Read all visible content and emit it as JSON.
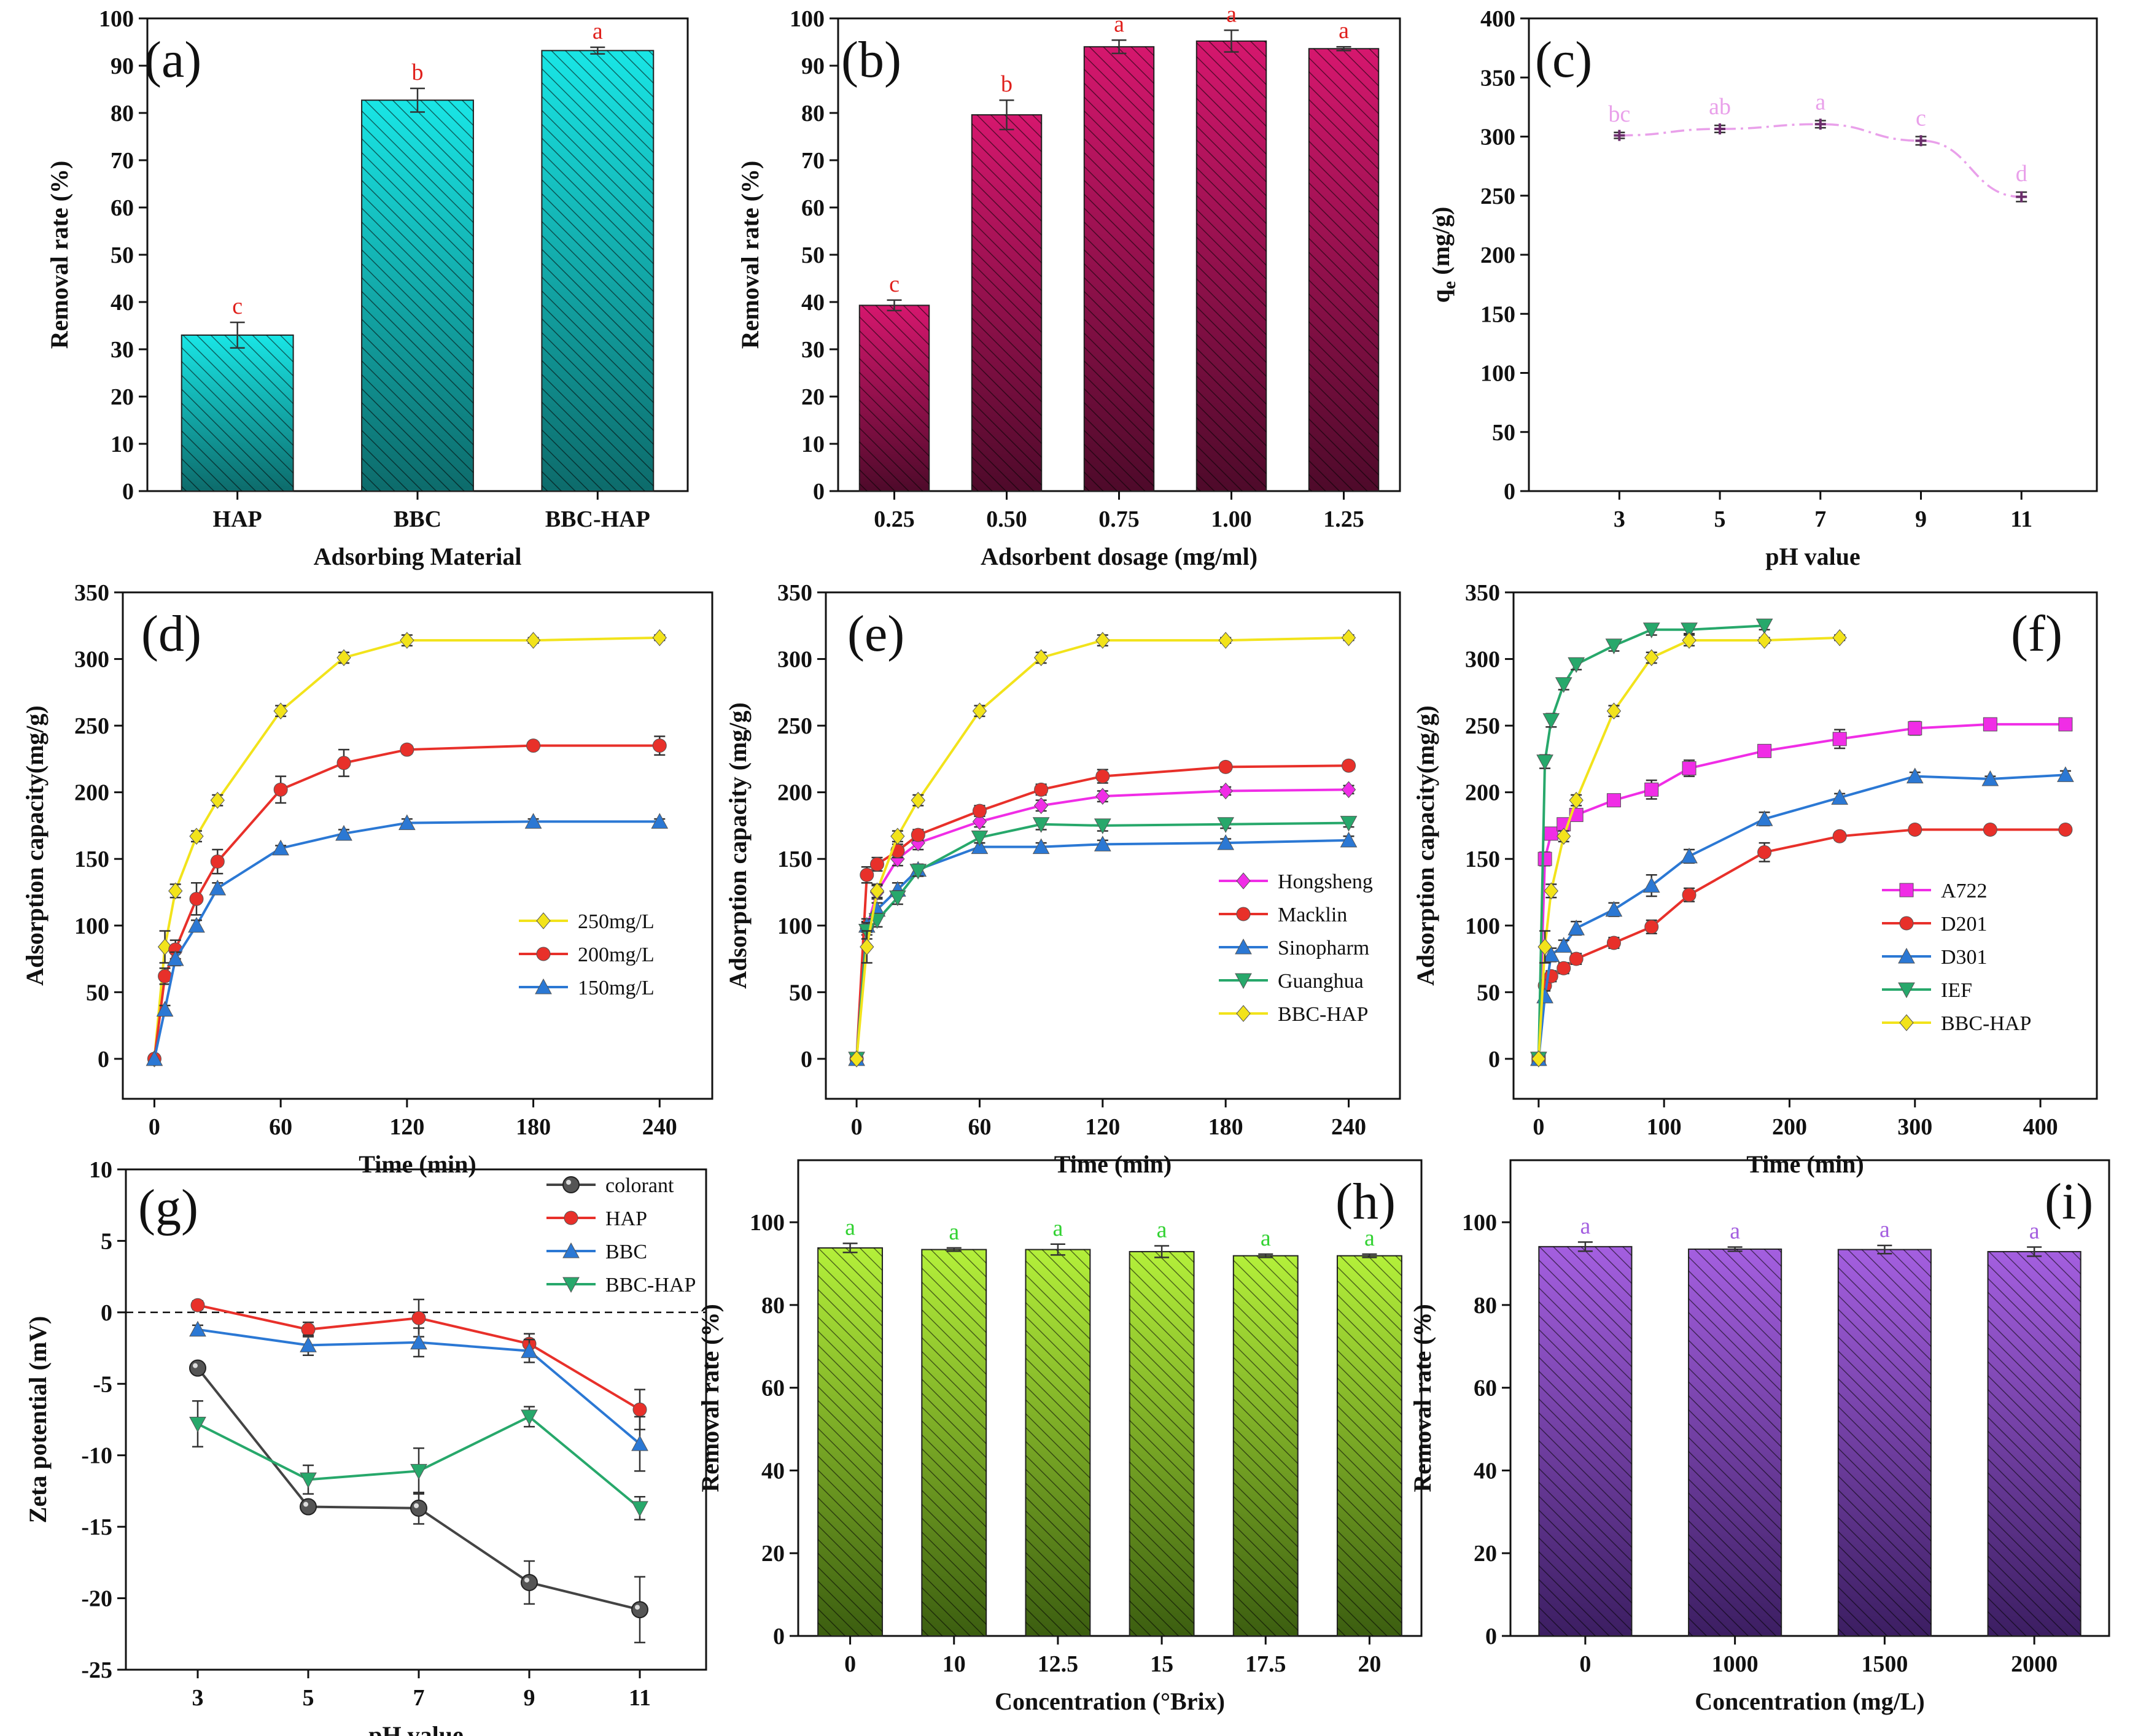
{
  "figure": {
    "panels_text": "Nine-panel adsorption figure (a)-(i)"
  },
  "chart_data": [
    {
      "id": "a",
      "type": "bar",
      "panel_label": "(a)",
      "title": "",
      "xlabel": "Adsorbing Material",
      "ylabel": "Removal rate (%)",
      "ylim": [
        0,
        100
      ],
      "ytick_step": 10,
      "categories": [
        "HAP",
        "BBC",
        "BBC-HAP"
      ],
      "values": [
        33,
        82.7,
        93.2
      ],
      "errors": [
        2.7,
        2.5,
        0.7
      ],
      "letters": [
        "c",
        "b",
        "a"
      ],
      "bar_color": "#19e6e6",
      "bar_dark": "#0d6b6b",
      "letter_color": "#e0201c"
    },
    {
      "id": "b",
      "type": "bar",
      "panel_label": "(b)",
      "title": "",
      "xlabel": "Adsorbent dosage (mg/ml)",
      "ylabel": "Removal rate (%)",
      "ylim": [
        0,
        100
      ],
      "ytick_step": 10,
      "categories": [
        "0.25",
        "0.50",
        "0.75",
        "1.00",
        "1.25"
      ],
      "values": [
        39.3,
        79.6,
        94,
        95.2,
        93.6
      ],
      "errors": [
        1.1,
        3.1,
        1.4,
        2.3,
        0.4
      ],
      "letters": [
        "c",
        "b",
        "a",
        "a",
        "a"
      ],
      "bar_color": "#d6176e",
      "bar_dark": "#4e0a2a",
      "letter_color": "#e0201c"
    },
    {
      "id": "c",
      "type": "line",
      "panel_label": "(c)",
      "title": "",
      "xlabel": "pH value",
      "ylabel": "q",
      "ylabel_sub": "e",
      "ylabel_tail": " (mg/g)",
      "ylim": [
        0,
        400
      ],
      "ytick_step": 50,
      "xlim": [
        1.2,
        12.5
      ],
      "xticks": [
        3,
        5,
        7,
        9,
        11
      ],
      "x": [
        3,
        5,
        7,
        9,
        11
      ],
      "values": [
        301,
        306.5,
        310.5,
        296.5,
        249
      ],
      "errors": [
        2.5,
        3,
        3,
        3.5,
        4
      ],
      "letters": [
        "bc",
        "ab",
        "a",
        "c",
        "d"
      ],
      "line_color": "#e9a0ea",
      "marker_color": "#6b2d6b"
    },
    {
      "id": "d",
      "type": "line",
      "panel_label": "(d)",
      "title": "",
      "xlabel": "Time (min)",
      "ylabel": "Adsorption capacity(mg/g)",
      "ylim": [
        -30,
        350
      ],
      "yticks": [
        0,
        50,
        100,
        150,
        200,
        250,
        300,
        350
      ],
      "xlim": [
        -15,
        265
      ],
      "xticks": [
        0,
        60,
        120,
        180,
        240
      ],
      "legend_position": "bottom-right",
      "series": [
        {
          "name": "250mg/L",
          "color": "#f2e31b",
          "marker": "diamond",
          "x": [
            0,
            5,
            10,
            20,
            30,
            60,
            90,
            120,
            180,
            240
          ],
          "y": [
            0,
            84,
            126,
            167,
            194,
            261,
            301,
            314,
            314,
            316
          ],
          "err": [
            0,
            12,
            5,
            4,
            4,
            4,
            4,
            4,
            2,
            2
          ]
        },
        {
          "name": "200mg/L",
          "color": "#e8302a",
          "marker": "circle",
          "x": [
            0,
            5,
            10,
            20,
            30,
            60,
            90,
            120,
            180,
            240
          ],
          "y": [
            0,
            62,
            82,
            120,
            148,
            202,
            222,
            232,
            235,
            235
          ],
          "err": [
            0,
            6,
            7,
            12,
            9,
            10,
            10,
            3,
            2,
            7
          ]
        },
        {
          "name": "150mg/L",
          "color": "#2b78d4",
          "marker": "triangle",
          "x": [
            0,
            5,
            10,
            20,
            30,
            60,
            90,
            120,
            180,
            240
          ],
          "y": [
            0,
            37,
            75,
            100,
            128,
            158,
            169,
            177,
            178,
            178
          ],
          "err": [
            0,
            3,
            5,
            4,
            4,
            2,
            3,
            3,
            2,
            2
          ]
        }
      ]
    },
    {
      "id": "e",
      "type": "line",
      "panel_label": "(e)",
      "title": "",
      "xlabel": "Time (min)",
      "ylabel": "Adsorption capacity (mg/g)",
      "ylim": [
        -30,
        350
      ],
      "yticks": [
        0,
        50,
        100,
        150,
        200,
        250,
        300,
        350
      ],
      "xlim": [
        -15,
        265
      ],
      "xticks": [
        0,
        60,
        120,
        180,
        240
      ],
      "legend_position": "bottom-right",
      "series": [
        {
          "name": "Hongsheng",
          "color": "#f02de6",
          "marker": "diamond",
          "x": [
            0,
            5,
            10,
            20,
            30,
            60,
            90,
            120,
            180,
            240
          ],
          "y": [
            0,
            98,
            125,
            150,
            162,
            178,
            190,
            197,
            201,
            202
          ],
          "err": [
            0,
            5,
            5,
            5,
            5,
            4,
            4,
            4,
            3,
            3
          ]
        },
        {
          "name": "Macklin",
          "color": "#e8302a",
          "marker": "circle",
          "x": [
            0,
            5,
            10,
            20,
            30,
            60,
            90,
            120,
            180,
            240
          ],
          "y": [
            0,
            138,
            146,
            156,
            168,
            186,
            202,
            212,
            219,
            220
          ],
          "err": [
            0,
            6,
            5,
            5,
            4,
            4,
            4,
            5,
            3,
            3
          ]
        },
        {
          "name": "Sinopharm",
          "color": "#2b78d4",
          "marker": "triangle",
          "x": [
            0,
            5,
            10,
            20,
            30,
            60,
            90,
            120,
            180,
            240
          ],
          "y": [
            0,
            100,
            112,
            127,
            142,
            159,
            159,
            161,
            162,
            164
          ],
          "err": [
            0,
            5,
            5,
            5,
            4,
            3,
            3,
            3,
            3,
            3
          ]
        },
        {
          "name": "Guanghua",
          "color": "#27a86b",
          "marker": "triangle-down",
          "x": [
            0,
            5,
            10,
            20,
            30,
            60,
            90,
            120,
            180,
            240
          ],
          "y": [
            0,
            96,
            104,
            121,
            141,
            166,
            176,
            175,
            176,
            177
          ],
          "err": [
            0,
            6,
            5,
            5,
            4,
            4,
            4,
            4,
            3,
            3
          ]
        },
        {
          "name": "BBC-HAP",
          "color": "#f2e31b",
          "marker": "diamond",
          "x": [
            0,
            5,
            10,
            20,
            30,
            60,
            90,
            120,
            180,
            240
          ],
          "y": [
            0,
            84,
            126,
            167,
            194,
            261,
            301,
            314,
            314,
            316
          ],
          "err": [
            0,
            12,
            5,
            4,
            4,
            4,
            4,
            4,
            2,
            2
          ]
        }
      ]
    },
    {
      "id": "f",
      "type": "line",
      "panel_label": "(f)",
      "title": "",
      "xlabel": "Time (min)",
      "ylabel": "Adsorption capacity(mg/g)",
      "ylim": [
        -30,
        350
      ],
      "yticks": [
        0,
        50,
        100,
        150,
        200,
        250,
        300,
        350
      ],
      "xlim": [
        -20,
        445
      ],
      "xticks": [
        0,
        100,
        200,
        300,
        400
      ],
      "legend_position": "bottom-right",
      "series": [
        {
          "name": "A722",
          "color": "#f02de6",
          "marker": "square",
          "x": [
            0,
            5,
            10,
            20,
            30,
            60,
            90,
            120,
            180,
            240,
            300,
            360,
            420
          ],
          "y": [
            0,
            150,
            169,
            176,
            183,
            194,
            202,
            218,
            231,
            240,
            248,
            251,
            251
          ],
          "err": [
            0,
            5,
            4,
            4,
            4,
            4,
            7,
            6,
            4,
            7,
            5,
            3,
            3
          ]
        },
        {
          "name": "D201",
          "color": "#e8302a",
          "marker": "circle",
          "x": [
            0,
            5,
            10,
            20,
            30,
            60,
            90,
            120,
            180,
            240,
            300,
            360,
            420
          ],
          "y": [
            0,
            55,
            62,
            68,
            75,
            87,
            99,
            123,
            155,
            167,
            172,
            172,
            172
          ],
          "err": [
            0,
            4,
            4,
            4,
            4,
            4,
            5,
            5,
            7,
            3,
            3,
            2,
            2
          ]
        },
        {
          "name": "D301",
          "color": "#2b78d4",
          "marker": "triangle",
          "x": [
            0,
            5,
            10,
            20,
            30,
            60,
            90,
            120,
            180,
            240,
            300,
            360,
            420
          ],
          "y": [
            0,
            47,
            78,
            85,
            98,
            112,
            130,
            152,
            180,
            196,
            212,
            210,
            213
          ],
          "err": [
            0,
            4,
            5,
            4,
            5,
            5,
            8,
            5,
            5,
            3,
            3,
            2,
            3
          ]
        },
        {
          "name": "IEF",
          "color": "#27a86b",
          "marker": "triangle-down",
          "x": [
            0,
            5,
            10,
            20,
            30,
            60,
            90,
            120,
            180
          ],
          "y": [
            0,
            223,
            254,
            281,
            296,
            310,
            322,
            322,
            325
          ],
          "err": [
            0,
            5,
            5,
            4,
            4,
            4,
            4,
            3,
            3
          ]
        },
        {
          "name": "BBC-HAP",
          "color": "#f2e31b",
          "marker": "diamond",
          "x": [
            0,
            5,
            10,
            20,
            30,
            60,
            90,
            120,
            180,
            240
          ],
          "y": [
            0,
            84,
            126,
            167,
            194,
            261,
            301,
            314,
            314,
            316
          ],
          "err": [
            0,
            12,
            5,
            4,
            4,
            4,
            4,
            4,
            2,
            2
          ]
        }
      ]
    },
    {
      "id": "g",
      "type": "line",
      "panel_label": "(g)",
      "title": "",
      "xlabel": "pH value",
      "ylabel": "Zeta potential (mV)",
      "ylim": [
        -25,
        10
      ],
      "yticks": [
        10,
        5,
        0,
        -5,
        -10,
        -15,
        -20,
        -25
      ],
      "xlim": [
        1.7,
        12.2
      ],
      "xticks": [
        3,
        5,
        7,
        9,
        11
      ],
      "legend_position": "top-right",
      "zero_line": true,
      "series": [
        {
          "name": "colorant",
          "color": "#444444",
          "marker": "ball",
          "x": [
            3,
            5,
            7,
            9,
            11
          ],
          "y": [
            -3.9,
            -13.6,
            -13.7,
            -18.9,
            -20.8
          ],
          "err": [
            0.3,
            0.3,
            1.1,
            1.5,
            2.3
          ]
        },
        {
          "name": "HAP",
          "color": "#e8302a",
          "marker": "circle",
          "x": [
            3,
            5,
            7,
            9,
            11
          ],
          "y": [
            0.5,
            -1.2,
            -0.4,
            -2.2,
            -6.8
          ],
          "err": [
            0.3,
            0.5,
            1.3,
            0.7,
            1.4
          ]
        },
        {
          "name": "BBC",
          "color": "#2b78d4",
          "marker": "triangle",
          "x": [
            3,
            5,
            7,
            9,
            11
          ],
          "y": [
            -1.2,
            -2.3,
            -2.1,
            -2.7,
            -9.2
          ],
          "err": [
            0.3,
            0.7,
            1,
            0.8,
            1.9
          ]
        },
        {
          "name": "BBC-HAP",
          "color": "#27a86b",
          "marker": "triangle-down",
          "x": [
            3,
            5,
            7,
            9,
            11
          ],
          "y": [
            -7.8,
            -11.7,
            -11.1,
            -7.3,
            -13.7
          ],
          "err": [
            1.6,
            1,
            1.6,
            0.7,
            0.8
          ]
        }
      ]
    },
    {
      "id": "h",
      "type": "bar",
      "panel_label": "(h)",
      "title": "",
      "xlabel": "Concentration (°Brix)",
      "ylabel": "Removal rate (%)",
      "ylim": [
        0,
        115
      ],
      "yticks": [
        0,
        20,
        40,
        60,
        80,
        100
      ],
      "categories": [
        "0",
        "10",
        "12.5",
        "15",
        "17.5",
        "20"
      ],
      "values": [
        93.8,
        93.4,
        93.4,
        92.9,
        91.9,
        91.9
      ],
      "errors": [
        1.1,
        0.4,
        1.3,
        1.4,
        0.4,
        0.4
      ],
      "letters": [
        "a",
        "a",
        "a",
        "a",
        "a",
        "a"
      ],
      "bar_color": "#b4f03a",
      "bar_dark": "#3c5e10",
      "letter_color": "#32d232"
    },
    {
      "id": "i",
      "type": "bar",
      "panel_label": "(i)",
      "title": "",
      "xlabel": "Concentration (mg/L)",
      "ylabel": "Removal rate (%)",
      "ylim": [
        0,
        115
      ],
      "yticks": [
        0,
        20,
        40,
        60,
        80,
        100
      ],
      "categories": [
        "0",
        "1000",
        "1500",
        "2000"
      ],
      "values": [
        94.1,
        93.5,
        93.4,
        92.9
      ],
      "errors": [
        1.1,
        0.5,
        1,
        1.1
      ],
      "letters": [
        "a",
        "a",
        "a",
        "a"
      ],
      "bar_color": "#a45fe0",
      "bar_dark": "#3c1e62",
      "letter_color": "#a45fe0"
    }
  ]
}
